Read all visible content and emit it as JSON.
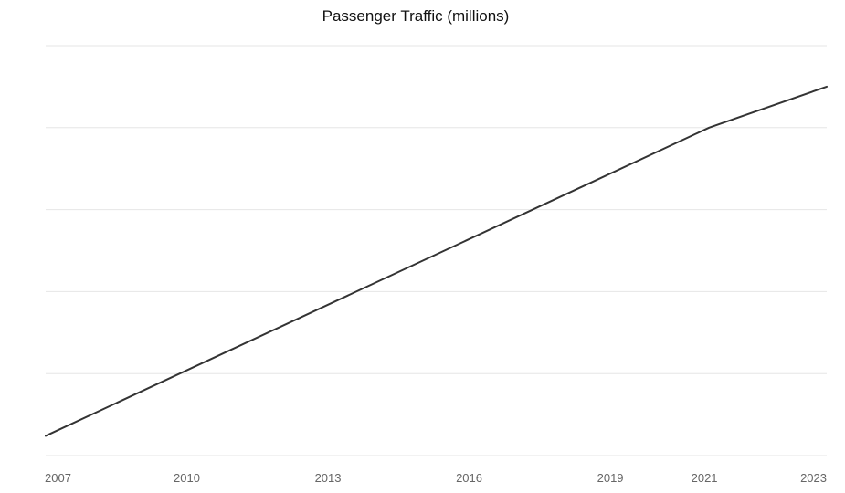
{
  "chart_data": {
    "type": "line",
    "title": "Passenger Traffic (millions)",
    "xlabel": "",
    "ylabel": "",
    "x_ticks": [
      "2007",
      "2010",
      "2013",
      "2016",
      "2019",
      "2021",
      "2023"
    ],
    "xlim": [
      2007,
      2023.6
    ],
    "ylim": [
      0,
      25
    ],
    "y_tick_values": [
      0,
      5,
      10,
      15,
      20,
      25
    ],
    "y_tick_labels_visible": false,
    "grid": true,
    "legend": "none",
    "line_color": "#333333",
    "series": [
      {
        "x": [
          2007,
          2021.1,
          2023.6
        ],
        "values": [
          1.2,
          20,
          22.5
        ]
      }
    ]
  }
}
